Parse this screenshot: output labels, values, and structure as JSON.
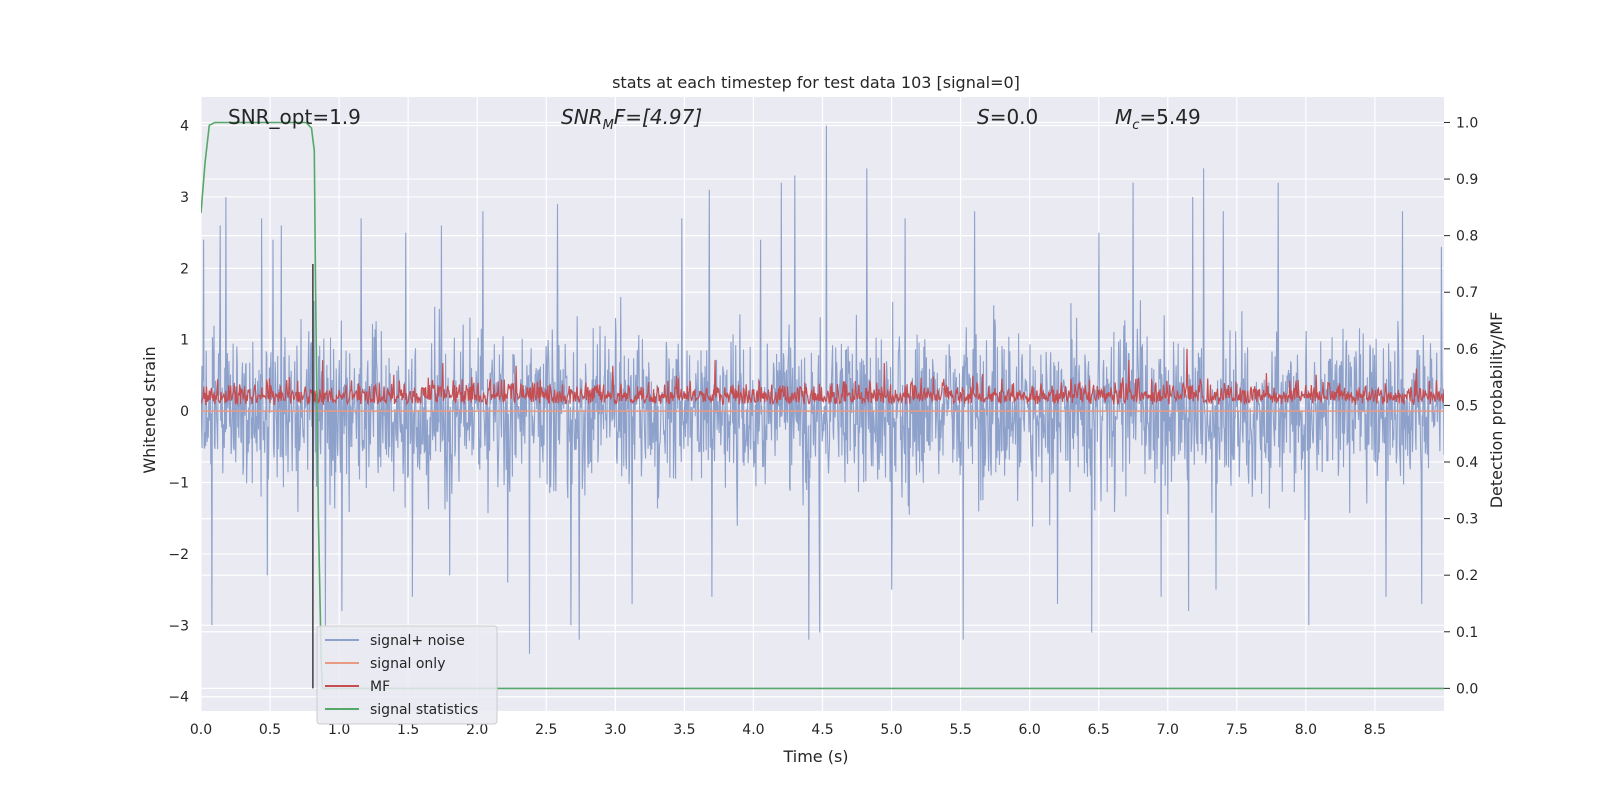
{
  "chart_data": {
    "type": "line",
    "title": "stats at each timestep for test data 103 [signal=0]",
    "xlabel": "Time (s)",
    "ylabel": "Whitened strain",
    "ylabel_right": "Detection probability/MF",
    "xlim": [
      0.0,
      9.0
    ],
    "ylim": [
      -4.2,
      4.4
    ],
    "ylim_right": [
      -0.04,
      1.045
    ],
    "x_ticks": [
      "0.0",
      "0.5",
      "1.0",
      "1.5",
      "2.0",
      "2.5",
      "3.0",
      "3.5",
      "4.0",
      "4.5",
      "5.0",
      "5.5",
      "6.0",
      "6.5",
      "7.0",
      "7.5",
      "8.0",
      "8.5"
    ],
    "x_tick_values": [
      0.0,
      0.5,
      1.0,
      1.5,
      2.0,
      2.5,
      3.0,
      3.5,
      4.0,
      4.5,
      5.0,
      5.5,
      6.0,
      6.5,
      7.0,
      7.5,
      8.0,
      8.5
    ],
    "y_ticks": [
      "4",
      "3",
      "2",
      "1",
      "0",
      "−1",
      "−2",
      "−3",
      "−4"
    ],
    "y_tick_values": [
      4,
      3,
      2,
      1,
      0,
      -1,
      -2,
      -3,
      -4
    ],
    "y_ticks_right": [
      "1.0",
      "0.9",
      "0.8",
      "0.7",
      "0.6",
      "0.5",
      "0.4",
      "0.3",
      "0.2",
      "0.1",
      "0.0"
    ],
    "y_tick_values_right": [
      1.0,
      0.9,
      0.8,
      0.7,
      0.6,
      0.5,
      0.4,
      0.3,
      0.2,
      0.1,
      0.0
    ],
    "grid": true,
    "legend_position": "lower-left",
    "annotations": {
      "snr_opt": "SNR_opt=1.9",
      "snr_mf_base": "SNR",
      "snr_mf_sub": "M",
      "snr_mf_rest": "F=[4.97]",
      "s_var": "S",
      "s_rest": "=0.0",
      "mc_var": "M",
      "mc_sub": "c",
      "mc_rest": "=5.49"
    },
    "series": [
      {
        "name": "signal+ noise",
        "axis": "left",
        "color": "#8da1cb",
        "style": "dense noise",
        "typical_abs_max": 1.5,
        "peaks": [
          [
            0.02,
            2.4
          ],
          [
            0.14,
            2.6
          ],
          [
            0.18,
            3.0
          ],
          [
            0.44,
            2.7
          ],
          [
            0.52,
            2.4
          ],
          [
            0.58,
            2.6
          ],
          [
            1.16,
            2.7
          ],
          [
            1.48,
            2.5
          ],
          [
            1.74,
            2.6
          ],
          [
            2.04,
            2.8
          ],
          [
            2.58,
            2.9
          ],
          [
            3.12,
            2.6
          ],
          [
            3.48,
            2.7
          ],
          [
            3.68,
            3.1
          ],
          [
            4.05,
            2.4
          ],
          [
            4.2,
            3.2
          ],
          [
            4.3,
            3.3
          ],
          [
            4.53,
            4.0
          ],
          [
            4.82,
            3.4
          ],
          [
            5.1,
            2.7
          ],
          [
            5.6,
            2.8
          ],
          [
            6.2,
            2.9
          ],
          [
            6.5,
            2.5
          ],
          [
            6.75,
            3.2
          ],
          [
            6.95,
            2.8
          ],
          [
            7.18,
            3.0
          ],
          [
            7.26,
            3.4
          ],
          [
            7.4,
            2.8
          ],
          [
            7.8,
            3.2
          ],
          [
            8.02,
            2.6
          ],
          [
            8.7,
            2.8
          ],
          [
            8.98,
            2.3
          ]
        ],
        "troughs": [
          [
            0.08,
            -3.0
          ],
          [
            0.48,
            -2.3
          ],
          [
            0.9,
            -3.0
          ],
          [
            1.02,
            -2.8
          ],
          [
            1.53,
            -2.6
          ],
          [
            1.8,
            -2.3
          ],
          [
            2.22,
            -2.4
          ],
          [
            2.38,
            -3.4
          ],
          [
            2.68,
            -3.0
          ],
          [
            2.74,
            -3.2
          ],
          [
            3.12,
            -2.7
          ],
          [
            3.7,
            -2.6
          ],
          [
            4.4,
            -3.2
          ],
          [
            4.48,
            -3.1
          ],
          [
            5.0,
            -2.5
          ],
          [
            5.52,
            -3.2
          ],
          [
            6.2,
            -2.7
          ],
          [
            6.45,
            -3.1
          ],
          [
            6.95,
            -2.6
          ],
          [
            7.15,
            -2.8
          ],
          [
            7.35,
            -2.5
          ],
          [
            8.02,
            -3.0
          ],
          [
            8.58,
            -2.6
          ],
          [
            8.84,
            -2.7
          ]
        ]
      },
      {
        "name": "signal only",
        "axis": "left",
        "color": "#e89a82",
        "style": "flat",
        "value": 0.0
      },
      {
        "name": "MF",
        "axis": "right",
        "color": "#c44e52",
        "style": "noise band",
        "baseline": 0.5,
        "typical_range": [
          0.5,
          0.55
        ],
        "peaks": [
          [
            0.88,
            0.58
          ],
          [
            1.75,
            0.575
          ],
          [
            2.28,
            0.57
          ],
          [
            2.98,
            0.57
          ],
          [
            3.72,
            0.58
          ],
          [
            4.95,
            0.575
          ],
          [
            6.72,
            0.58
          ],
          [
            7.14,
            0.6
          ],
          [
            8.8,
            0.565
          ]
        ]
      },
      {
        "name": "signal statistics",
        "axis": "right",
        "color": "#55a868",
        "style": "line",
        "points": [
          [
            0.0,
            0.84
          ],
          [
            0.03,
            0.93
          ],
          [
            0.06,
            0.995
          ],
          [
            0.1,
            1.0
          ],
          [
            0.76,
            1.0
          ],
          [
            0.8,
            0.99
          ],
          [
            0.82,
            0.95
          ],
          [
            0.83,
            0.7
          ],
          [
            0.85,
            0.3
          ],
          [
            0.87,
            0.05
          ],
          [
            0.88,
            0.0
          ],
          [
            9.0,
            0.0
          ]
        ]
      },
      {
        "name": "",
        "axis": "right",
        "color": "#404040",
        "style": "vertical marker",
        "x": 0.81,
        "y_from": 0.0,
        "y_to": 0.75
      }
    ]
  }
}
